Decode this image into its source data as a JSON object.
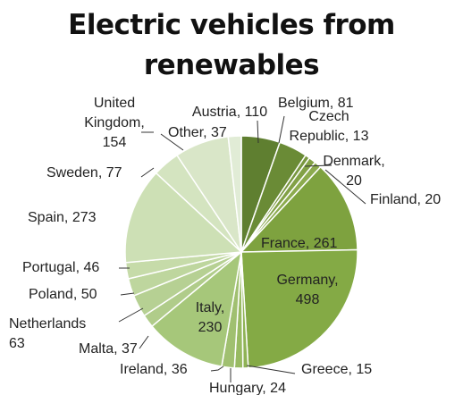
{
  "chart_data": {
    "type": "pie",
    "title_lines": [
      "Electric vehicles from",
      "renewables"
    ],
    "slices": [
      {
        "label": "Austria",
        "value": 110,
        "color": "#5f7f30"
      },
      {
        "label": "Belgium",
        "value": 81,
        "color": "#6a8b36"
      },
      {
        "label": "Czech Republic",
        "value": 13,
        "color": "#78973f"
      },
      {
        "label": "Denmark",
        "value": 20,
        "color": "#82a146"
      },
      {
        "label": "Finland",
        "value": 20,
        "color": "#8cab4e"
      },
      {
        "label": "France",
        "value": 261,
        "color": "#7ea23f"
      },
      {
        "label": "Germany",
        "value": 498,
        "color": "#84aa45"
      },
      {
        "label": "Greece",
        "value": 15,
        "color": "#8fb355"
      },
      {
        "label": "Hungary",
        "value": 24,
        "color": "#98ba62"
      },
      {
        "label": "Ireland",
        "value": 36,
        "color": "#a0c070"
      },
      {
        "label": "Italy",
        "value": 230,
        "color": "#a6c77a"
      },
      {
        "label": "Malta",
        "value": 37,
        "color": "#b0cc8a"
      },
      {
        "label": "Netherlands",
        "value": 63,
        "color": "#b6d093"
      },
      {
        "label": "Poland",
        "value": 50,
        "color": "#bed69e"
      },
      {
        "label": "Portugal",
        "value": 46,
        "color": "#c6dba9"
      },
      {
        "label": "Spain",
        "value": 273,
        "color": "#cde0b5"
      },
      {
        "label": "Sweden",
        "value": 77,
        "color": "#d4e4c0"
      },
      {
        "label": "United Kingdom",
        "value": 154,
        "color": "#d9e6c8"
      },
      {
        "label": "Other",
        "value": 37,
        "color": "#e1ecd6"
      }
    ],
    "data_labels": [
      {
        "lines": [
          "Austria, 110"
        ]
      },
      {
        "lines": [
          "Belgium, 81"
        ]
      },
      {
        "lines": [
          "Czech",
          "Republic, 13"
        ]
      },
      {
        "lines": [
          "Denmark,",
          "20"
        ]
      },
      {
        "lines": [
          "Finland, 20"
        ]
      },
      {
        "lines": [
          "France, 261"
        ]
      },
      {
        "lines": [
          "Germany,",
          "498"
        ]
      },
      {
        "lines": [
          "Greece, 15"
        ]
      },
      {
        "lines": [
          "Hungary, 24"
        ]
      },
      {
        "lines": [
          "Ireland, 36"
        ]
      },
      {
        "lines": [
          "Italy,",
          "230"
        ]
      },
      {
        "lines": [
          "Malta, 37"
        ]
      },
      {
        "lines": [
          "Netherlands",
          "63"
        ]
      },
      {
        "lines": [
          "Poland, 50"
        ]
      },
      {
        "lines": [
          "Portugal, 46"
        ]
      },
      {
        "lines": [
          "Spain, 273"
        ]
      },
      {
        "lines": [
          "Sweden, 77"
        ]
      },
      {
        "lines": [
          "United",
          "Kingdom,",
          "154"
        ]
      },
      {
        "lines": [
          "Other, 37"
        ]
      }
    ],
    "legend": "none"
  }
}
